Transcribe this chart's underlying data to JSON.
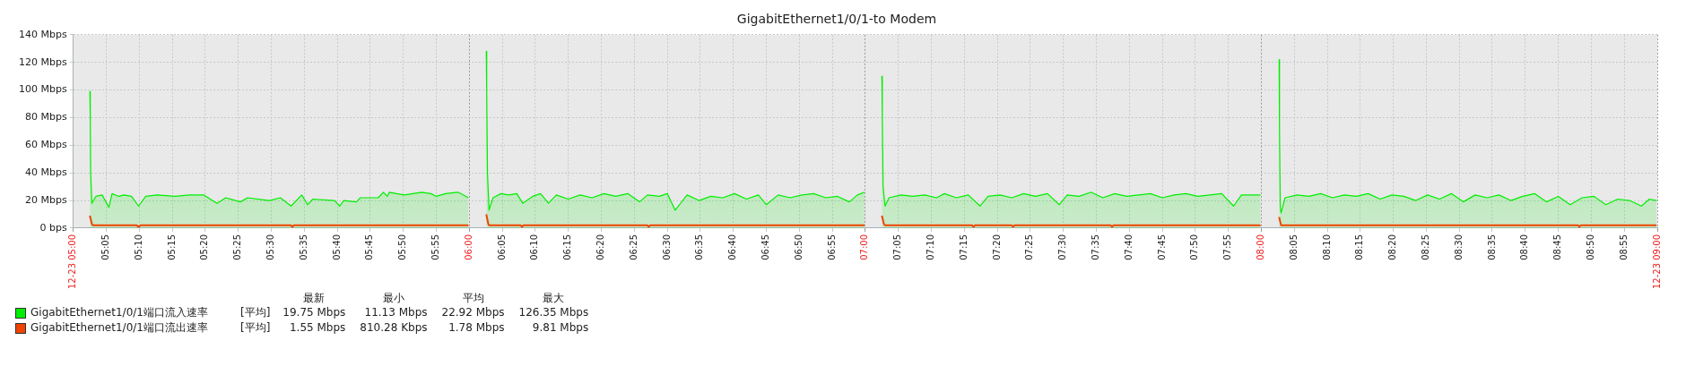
{
  "chart_data": {
    "type": "area",
    "title": "GigabitEthernet1/0/1-to Modem",
    "xlim": [
      5,
      9
    ],
    "ylim": [
      0,
      140
    ],
    "xticks": [
      {
        "value": 5,
        "label": "12-23 05:00"
      },
      {
        "value": 5.0833,
        "label": "05:05"
      },
      {
        "value": 5.1667,
        "label": "05:10"
      },
      {
        "value": 5.25,
        "label": "05:15"
      },
      {
        "value": 5.3333,
        "label": "05:20"
      },
      {
        "value": 5.4167,
        "label": "05:25"
      },
      {
        "value": 5.5,
        "label": "05:30"
      },
      {
        "value": 5.5833,
        "label": "05:35"
      },
      {
        "value": 5.6667,
        "label": "05:40"
      },
      {
        "value": 5.75,
        "label": "05:45"
      },
      {
        "value": 5.8333,
        "label": "05:50"
      },
      {
        "value": 5.9167,
        "label": "05:55"
      },
      {
        "value": 6,
        "label": "06:00"
      },
      {
        "value": 6.0833,
        "label": "06:05"
      },
      {
        "value": 6.1667,
        "label": "06:10"
      },
      {
        "value": 6.25,
        "label": "06:15"
      },
      {
        "value": 6.3333,
        "label": "06:20"
      },
      {
        "value": 6.4167,
        "label": "06:25"
      },
      {
        "value": 6.5,
        "label": "06:30"
      },
      {
        "value": 6.5833,
        "label": "06:35"
      },
      {
        "value": 6.6667,
        "label": "06:40"
      },
      {
        "value": 6.75,
        "label": "06:45"
      },
      {
        "value": 6.8333,
        "label": "06:50"
      },
      {
        "value": 6.9167,
        "label": "06:55"
      },
      {
        "value": 7,
        "label": "07:00"
      },
      {
        "value": 7.0833,
        "label": "07:05"
      },
      {
        "value": 7.1667,
        "label": "07:10"
      },
      {
        "value": 7.25,
        "label": "07:15"
      },
      {
        "value": 7.3333,
        "label": "07:20"
      },
      {
        "value": 7.4167,
        "label": "07:25"
      },
      {
        "value": 7.5,
        "label": "07:30"
      },
      {
        "value": 7.5833,
        "label": "07:35"
      },
      {
        "value": 7.6667,
        "label": "07:40"
      },
      {
        "value": 7.75,
        "label": "07:45"
      },
      {
        "value": 7.8333,
        "label": "07:50"
      },
      {
        "value": 7.9167,
        "label": "07:55"
      },
      {
        "value": 8,
        "label": "08:00"
      },
      {
        "value": 8.0833,
        "label": "08:05"
      },
      {
        "value": 8.1667,
        "label": "08:10"
      },
      {
        "value": 8.25,
        "label": "08:15"
      },
      {
        "value": 8.3333,
        "label": "08:20"
      },
      {
        "value": 8.4167,
        "label": "08:25"
      },
      {
        "value": 8.5,
        "label": "08:30"
      },
      {
        "value": 8.5833,
        "label": "08:35"
      },
      {
        "value": 8.6667,
        "label": "08:40"
      },
      {
        "value": 8.75,
        "label": "08:45"
      },
      {
        "value": 8.8333,
        "label": "08:50"
      },
      {
        "value": 8.9167,
        "label": "08:55"
      },
      {
        "value": 9,
        "label": "12-23 09:00"
      }
    ],
    "yticks": [
      {
        "value": 0,
        "label": "0 bps"
      },
      {
        "value": 20,
        "label": "20 Mbps"
      },
      {
        "value": 40,
        "label": "40 Mbps"
      },
      {
        "value": 60,
        "label": "60 Mbps"
      },
      {
        "value": 80,
        "label": "80 Mbps"
      },
      {
        "value": 100,
        "label": "100 Mbps"
      },
      {
        "value": 120,
        "label": "120 Mbps"
      },
      {
        "value": 140,
        "label": "140 Mbps"
      }
    ],
    "grid": true,
    "legend": "bottom",
    "series": [
      {
        "name": "GigabitEthernet1/0/1端口流入速率",
        "color": "#00ee00",
        "x": [
          5.042,
          5.043,
          5.044,
          5.047,
          5.057,
          5.073,
          5.09,
          5.098,
          5.115,
          5.128,
          5.147,
          5.165,
          5.183,
          5.212,
          5.257,
          5.293,
          5.33,
          5.363,
          5.385,
          5.422,
          5.44,
          5.495,
          5.523,
          5.55,
          5.577,
          5.592,
          5.605,
          5.66,
          5.673,
          5.683,
          5.715,
          5.725,
          5.77,
          5.783,
          5.793,
          5.798,
          5.835,
          5.88,
          5.903,
          5.917,
          5.94,
          5.972,
          5.998,
          6.02,
          6.043,
          6.044,
          6.046,
          6.05,
          6.06,
          6.08,
          6.1,
          6.12,
          6.135,
          6.16,
          6.18,
          6.2,
          6.22,
          6.25,
          6.28,
          6.31,
          6.34,
          6.37,
          6.4,
          6.43,
          6.45,
          6.48,
          6.5,
          6.52,
          6.55,
          6.58,
          6.61,
          6.64,
          6.67,
          6.7,
          6.73,
          6.75,
          6.78,
          6.81,
          6.84,
          6.87,
          6.9,
          6.93,
          6.96,
          6.98,
          6.998,
          7.02,
          7.042,
          7.043,
          7.045,
          7.05,
          7.06,
          7.09,
          7.12,
          7.15,
          7.18,
          7.2,
          7.23,
          7.26,
          7.29,
          7.31,
          7.34,
          7.37,
          7.4,
          7.43,
          7.46,
          7.49,
          7.51,
          7.54,
          7.57,
          7.6,
          7.63,
          7.66,
          7.69,
          7.72,
          7.75,
          7.78,
          7.81,
          7.84,
          7.87,
          7.9,
          7.93,
          7.95,
          7.998,
          8.02,
          8.045,
          8.046,
          8.048,
          8.05,
          8.06,
          8.09,
          8.12,
          8.15,
          8.18,
          8.21,
          8.24,
          8.27,
          8.3,
          8.33,
          8.36,
          8.39,
          8.42,
          8.45,
          8.48,
          8.51,
          8.54,
          8.57,
          8.6,
          8.63,
          8.66,
          8.69,
          8.72,
          8.75,
          8.78,
          8.81,
          8.84,
          8.87,
          8.9,
          8.93,
          8.96,
          8.98,
          8.998
        ],
        "values": [
          99,
          78,
          40,
          18,
          23,
          24,
          15,
          25,
          23,
          24,
          23,
          16,
          23,
          24,
          23,
          24,
          24,
          18,
          22,
          19,
          22,
          20,
          22,
          16,
          24,
          17,
          21,
          20,
          16,
          20,
          19,
          22,
          22,
          26,
          23,
          26,
          24,
          26,
          25,
          23,
          25,
          26,
          22,
          null,
          128,
          100,
          40,
          13,
          22,
          25,
          24,
          25,
          18,
          23,
          25,
          18,
          24,
          21,
          24,
          22,
          25,
          23,
          25,
          19,
          24,
          23,
          25,
          13,
          24,
          20,
          23,
          22,
          25,
          21,
          24,
          17,
          24,
          22,
          24,
          25,
          22,
          23,
          19,
          24,
          26,
          null,
          110,
          80,
          30,
          16,
          22,
          24,
          23,
          24,
          22,
          25,
          22,
          24,
          16,
          23,
          24,
          22,
          25,
          23,
          25,
          17,
          24,
          23,
          26,
          22,
          25,
          23,
          24,
          25,
          22,
          24,
          25,
          23,
          24,
          25,
          16,
          24,
          24,
          null,
          122,
          70,
          15,
          11,
          22,
          24,
          23,
          25,
          22,
          24,
          23,
          25,
          21,
          24,
          23,
          20,
          24,
          21,
          25,
          19,
          24,
          22,
          24,
          20,
          23,
          25,
          19,
          23,
          17,
          22,
          23,
          17,
          21,
          20,
          16,
          21,
          20
        ]
      },
      {
        "name": "GigabitEthernet1/0/1端口流出速率",
        "type": "line",
        "color": "#ee4400",
        "x": [
          5.042,
          5.047,
          5.05,
          5.16,
          5.165,
          5.17,
          5.55,
          5.553,
          5.557,
          5.998,
          6.02,
          6.043,
          6.048,
          6.05,
          6.13,
          6.133,
          6.137,
          6.45,
          6.453,
          6.457,
          6.998,
          7.02,
          7.042,
          7.047,
          7.05,
          7.27,
          7.273,
          7.277,
          7.37,
          7.373,
          7.377,
          7.62,
          7.623,
          7.627,
          7.998,
          8.02,
          8.045,
          8.05,
          8.053,
          8.8,
          8.803,
          8.807,
          8.998
        ],
        "values": [
          9,
          3,
          2,
          2,
          1,
          2,
          2,
          1,
          2,
          2,
          null,
          10,
          3,
          2,
          2,
          1,
          2,
          2,
          1,
          2,
          2,
          null,
          9,
          3,
          2,
          2,
          1,
          2,
          2,
          1,
          2,
          2,
          1,
          2,
          2,
          null,
          8,
          2,
          2,
          2,
          1,
          2,
          2
        ]
      }
    ],
    "annotations": [
      "最新",
      "最小",
      "平均",
      "最大",
      "[平均]",
      "19.75 Mbps",
      "11.13 Mbps",
      "22.92 Mbps",
      "126.35 Mbps",
      "[平均]",
      "1.55 Mbps",
      "810.28 Kbps",
      "1.78 Mbps",
      "9.81 Mbps"
    ]
  }
}
